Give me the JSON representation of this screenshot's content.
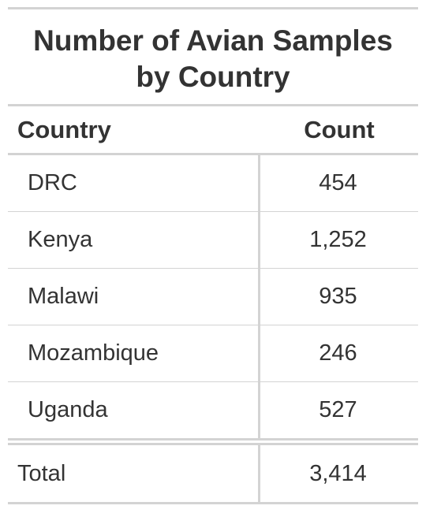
{
  "table": {
    "title_line1": "Number of Avian Samples",
    "title_line2": "by Country",
    "header": {
      "country": "Country",
      "count": "Count"
    },
    "rows": [
      {
        "country": "DRC",
        "count": "454"
      },
      {
        "country": "Kenya",
        "count": "1,252"
      },
      {
        "country": "Malawi",
        "count": "935"
      },
      {
        "country": "Mozambique",
        "count": "246"
      },
      {
        "country": "Uganda",
        "count": "527"
      }
    ],
    "total": {
      "label": "Total",
      "count": "3,414"
    }
  }
}
